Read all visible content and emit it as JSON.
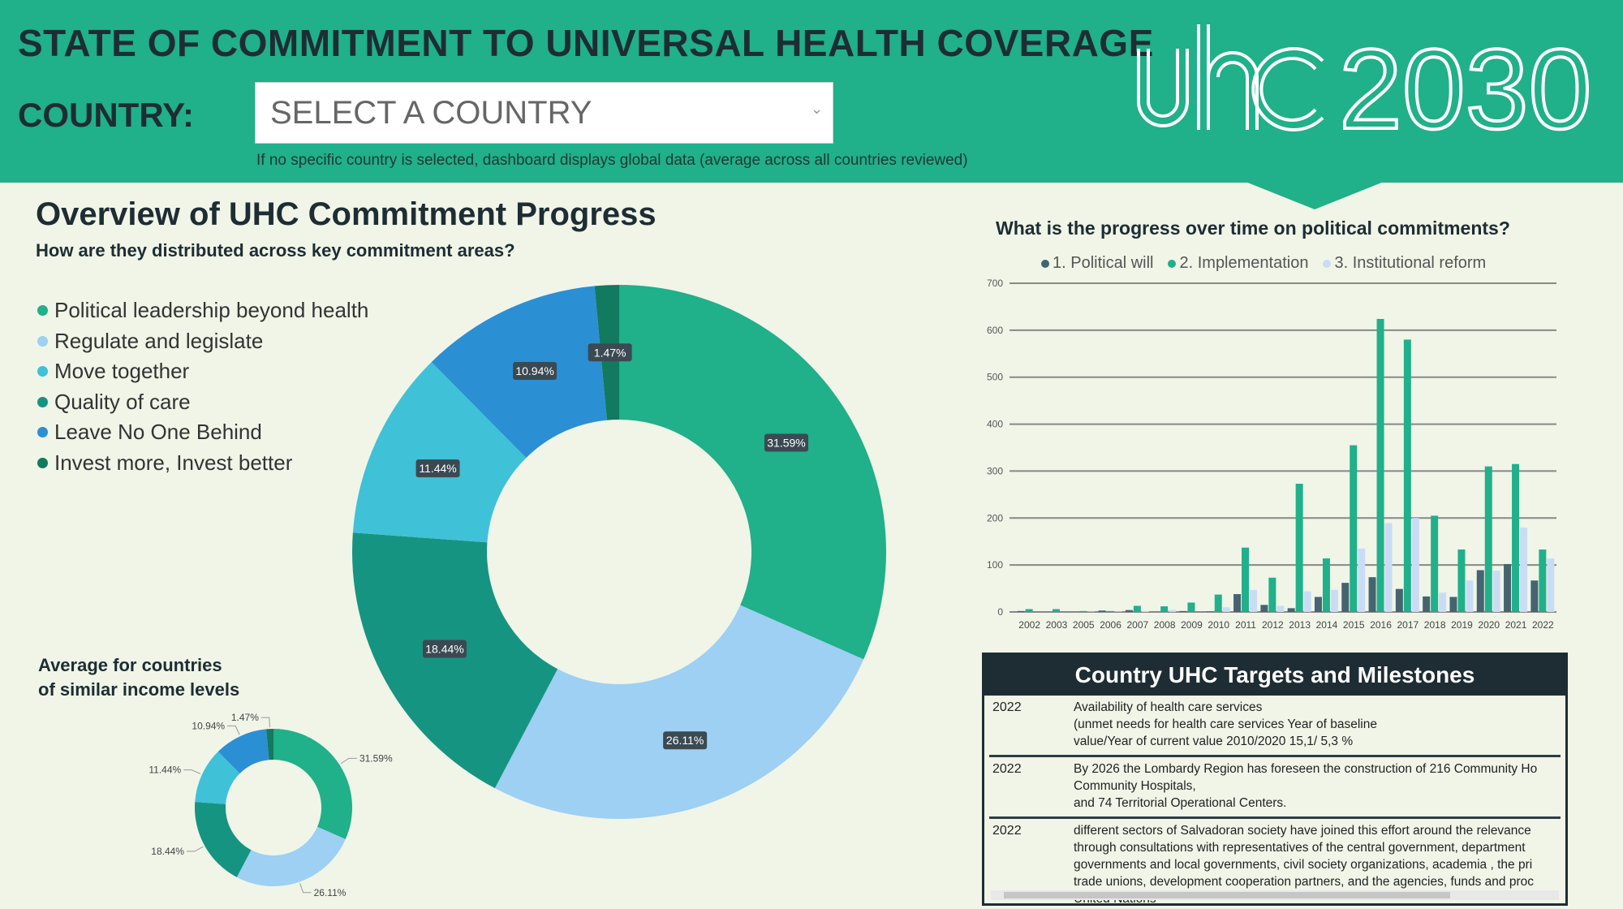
{
  "header": {
    "title": "STATE OF COMMITMENT TO UNIVERSAL HEALTH COVERAGE",
    "country_label": "COUNTRY:",
    "country_select": {
      "value": "SELECT A COUNTRY"
    },
    "note": "If no specific country is selected, dashboard displays global data (average across all countries reviewed)",
    "logo": "uhc2030"
  },
  "overview": {
    "title": "Overview of UHC Commitment Progress",
    "subtitle": "How are they distributed across key commitment areas?",
    "legend": [
      {
        "label": "Political leadership beyond health",
        "color": "#20b08a"
      },
      {
        "label": "Regulate and legislate",
        "color": "#9dd0f3"
      },
      {
        "label": "Move together",
        "color": "#3fc1d8"
      },
      {
        "label": "Quality of care",
        "color": "#169482"
      },
      {
        "label": "Leave No One Behind",
        "color": "#2b8fd4"
      },
      {
        "label": "Invest more, Invest better",
        "color": "#127a5e"
      }
    ],
    "small_title_1": "Average for countries",
    "small_title_2": "of similar income levels"
  },
  "chart_data": [
    {
      "type": "pie",
      "donut": true,
      "slices": [
        {
          "label": "31.59%",
          "value": 31.59,
          "color": "#20b08a"
        },
        {
          "label": "26.11%",
          "value": 26.11,
          "color": "#9dd0f3"
        },
        {
          "label": "18.44%",
          "value": 18.44,
          "color": "#169482"
        },
        {
          "label": "11.44%",
          "value": 11.44,
          "color": "#3fc1d8"
        },
        {
          "label": "10.94%",
          "value": 10.94,
          "color": "#2b8fd4"
        },
        {
          "label": "1.47%",
          "value": 1.47,
          "color": "#127a5e"
        }
      ]
    },
    {
      "type": "pie",
      "donut": true,
      "slices": [
        {
          "label": "31.59%",
          "value": 31.59,
          "color": "#20b08a"
        },
        {
          "label": "26.11%",
          "value": 26.11,
          "color": "#9dd0f3"
        },
        {
          "label": "18.44%",
          "value": 18.44,
          "color": "#169482"
        },
        {
          "label": "11.44%",
          "value": 11.44,
          "color": "#3fc1d8"
        },
        {
          "label": "10.94%",
          "value": 10.94,
          "color": "#2b8fd4"
        },
        {
          "label": "1.47%",
          "value": 1.47,
          "color": "#127a5e"
        }
      ]
    },
    {
      "type": "bar",
      "title": "What is the progress over time on political commitments?",
      "legend_position": "top",
      "grid": true,
      "ylim": [
        0,
        700
      ],
      "yticks": [
        "0",
        "100",
        "200",
        "300",
        "400",
        "500",
        "600",
        "700"
      ],
      "categories": [
        "2002",
        "2003",
        "2005",
        "2006",
        "2007",
        "2008",
        "2009",
        "2010",
        "2011",
        "2012",
        "2013",
        "2014",
        "2015",
        "2016",
        "2017",
        "2018",
        "2019",
        "2020",
        "2021",
        "2022"
      ],
      "series": [
        {
          "name": "1. Political will",
          "color": "#45646f",
          "values": [
            2,
            0,
            0,
            3,
            4,
            0,
            2,
            1,
            38,
            15,
            8,
            32,
            62,
            74,
            49,
            33,
            32,
            89,
            102,
            67
          ]
        },
        {
          "name": "2. Implementation",
          "color": "#20b08a",
          "values": [
            6,
            6,
            2,
            2,
            13,
            12,
            20,
            37,
            137,
            73,
            273,
            114,
            355,
            624,
            580,
            205,
            133,
            310,
            315,
            133
          ]
        },
        {
          "name": "3. Institutional reform",
          "color": "#c9dcf4",
          "values": [
            0,
            0,
            1,
            1,
            2,
            4,
            0,
            10,
            47,
            13,
            44,
            47,
            135,
            189,
            200,
            41,
            67,
            88,
            180,
            114
          ]
        }
      ]
    }
  ],
  "milestones": {
    "title": "Country UHC Targets and Milestones",
    "rows": [
      {
        "year": "2022",
        "text": "Availability of health care services\n(unmet needs for health care services Year of baseline\nvalue/Year of current value 2010/2020 15,1/ 5,3 %"
      },
      {
        "year": "2022",
        "text": "By 2026 the Lombardy Region has foreseen the construction of 216 Community Ho\nCommunity Hospitals,\nand 74 Territorial Operational Centers."
      },
      {
        "year": "2022",
        "text": "different sectors of Salvadoran society have joined this effort around the relevance\nthrough consultations with representatives of the central government, department\ngovernments and local governments, civil society organizations, academia , the pri\ntrade unions, development cooperation partners, and the agencies, funds and proc\nUnited Nations"
      }
    ]
  }
}
